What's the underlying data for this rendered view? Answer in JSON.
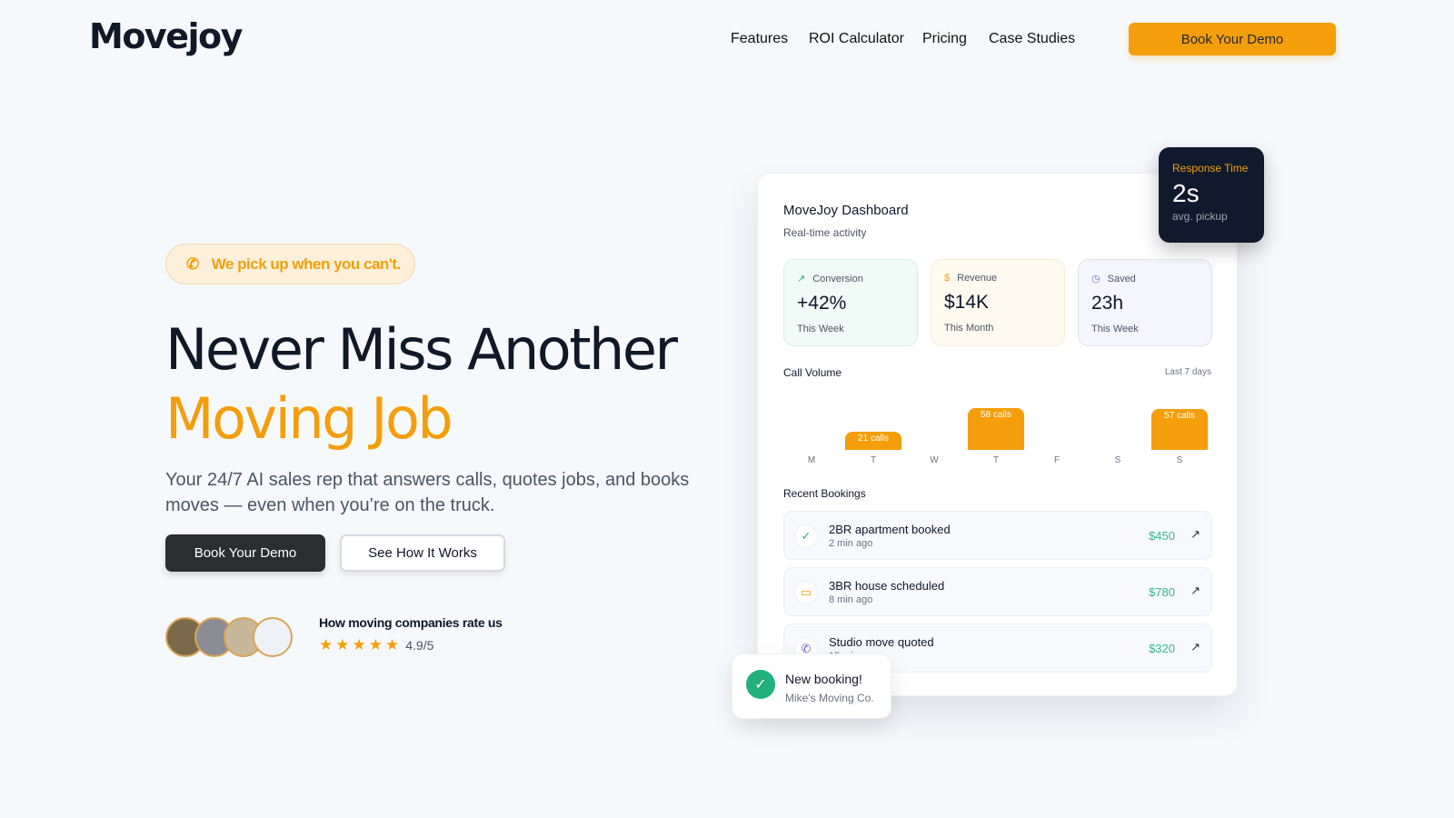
{
  "brand": {
    "logo": "Movejoy",
    "accent": "#f59e0b"
  },
  "nav": {
    "items": [
      "Features",
      "ROI Calculator",
      "Pricing",
      "Case Studies"
    ],
    "cta": "Book Your Demo"
  },
  "hero": {
    "pill": "We pick up when you can't.",
    "title_line1": "Never Miss Another",
    "title_line2": "Moving Job",
    "subtitle": "Your 24/7 AI sales rep that answers calls, quotes jobs, and books moves — even when you’re on the truck.",
    "primary_btn": "Book Your Demo",
    "secondary_btn": "See How It Works",
    "rating_label": "How moving companies rate us",
    "rating": "4.9/5",
    "stars": 5
  },
  "dashboard": {
    "title": "MoveJoy Dashboard",
    "subtitle": "Real-time activity",
    "stats": [
      {
        "icon": "trending-up-icon",
        "label": "Conversion",
        "value": "+42%",
        "period": "This Week"
      },
      {
        "icon": "dollar-icon",
        "label": "Revenue",
        "value": "$14K",
        "period": "This Month"
      },
      {
        "icon": "clock-icon",
        "label": "Saved",
        "value": "23h",
        "period": "This Week"
      }
    ],
    "call_volume_title": "Call Volume",
    "call_volume_range": "Last 7 days",
    "bookings_title": "Recent Bookings",
    "bookings": [
      {
        "icon": "check-circle-icon",
        "title": "2BR apartment booked",
        "time": "2 min ago",
        "amount": "$450"
      },
      {
        "icon": "calendar-icon",
        "title": "3BR house scheduled",
        "time": "8 min ago",
        "amount": "$780"
      },
      {
        "icon": "phone-icon",
        "title": "Studio move quoted",
        "time": "15 min ago",
        "amount": "$320"
      }
    ]
  },
  "response": {
    "label": "Response Time",
    "value": "2s",
    "sub": "avg. pickup"
  },
  "toast": {
    "title": "New booking!",
    "sub": "Mike's Moving Co."
  },
  "chart_data": {
    "type": "bar",
    "categories": [
      "M",
      "T",
      "W",
      "T",
      "F",
      "S",
      "S"
    ],
    "values": [
      null,
      21,
      null,
      58,
      null,
      null,
      57
    ],
    "labels": [
      "",
      "21 calls",
      "",
      "58 calls",
      "",
      "",
      "57 calls"
    ],
    "title": "Call Volume"
  }
}
